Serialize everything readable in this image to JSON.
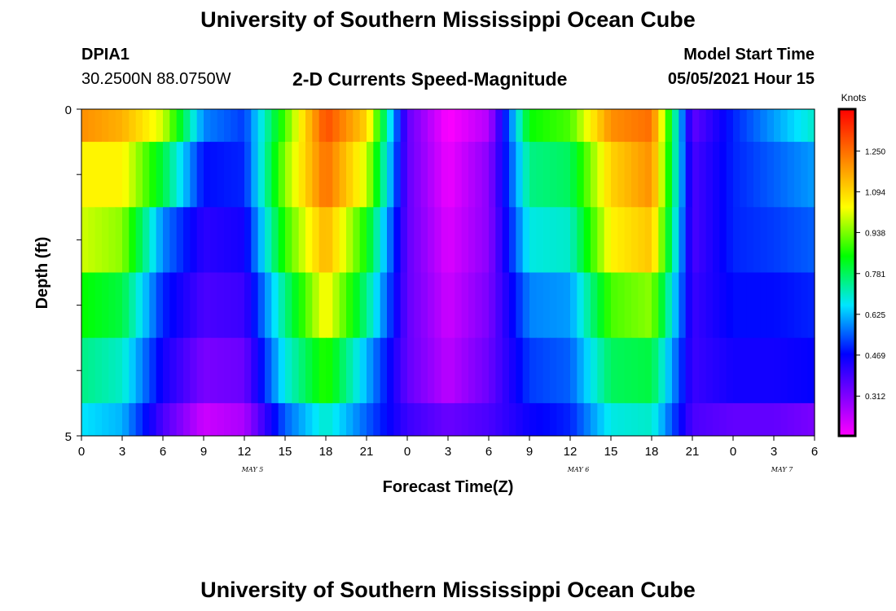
{
  "page": {
    "title_top": "University of Southern Mississippi Ocean Cube",
    "title_bottom": "University of Southern Mississippi Ocean Cube",
    "station_id": "DPIA1",
    "station_coords": "30.2500N  88.0750W",
    "chart_title": "2-D Currents Speed-Magnitude",
    "model_start_label": "Model Start Time",
    "model_start_value": "05/05/2021 Hour 15"
  },
  "chart_data": {
    "type": "heatmap",
    "title": "2-D Currents Speed-Magnitude",
    "xlabel": "Forecast Time(Z)",
    "ylabel": "Depth (ft)",
    "x_tick_labels": [
      "0",
      "3",
      "6",
      "9",
      "12",
      "15",
      "18",
      "21",
      "0",
      "3",
      "6",
      "9",
      "12",
      "15",
      "18",
      "21",
      "0",
      "3",
      "6"
    ],
    "x_range_hours": [
      0,
      54
    ],
    "date_labels": [
      {
        "label": "MAY 5",
        "hour": 12
      },
      {
        "label": "MAY 6",
        "hour": 36
      },
      {
        "label": "MAY 7",
        "hour": 51
      }
    ],
    "y_tick_labels": [
      "0",
      "5"
    ],
    "y_range": [
      0,
      5
    ],
    "colorbar": {
      "unit": "Knots",
      "tick_labels": [
        "1.250",
        "1.094",
        "0.938",
        "0.781",
        "0.625",
        "0.469",
        "0.312"
      ],
      "range": [
        0.16,
        1.41
      ]
    },
    "x_hours": [
      0,
      3,
      6,
      9,
      12,
      15,
      18,
      21,
      24,
      27,
      30,
      33,
      36,
      39,
      42,
      45,
      48,
      51,
      54
    ],
    "depth_rows": [
      {
        "depth_range": [
          0,
          0.5
        ],
        "values": [
          1.2,
          1.15,
          1.0,
          0.58,
          0.52,
          0.9,
          1.3,
          1.1,
          0.35,
          0.16,
          0.25,
          0.85,
          0.9,
          1.2,
          1.25,
          0.35,
          0.5,
          0.6,
          0.7
        ]
      },
      {
        "depth_range": [
          0.5,
          1.5
        ],
        "values": [
          1.05,
          1.05,
          0.8,
          0.48,
          0.5,
          0.95,
          1.25,
          1.0,
          0.35,
          0.18,
          0.3,
          0.75,
          0.78,
          1.1,
          1.2,
          0.38,
          0.5,
          0.55,
          0.6
        ]
      },
      {
        "depth_range": [
          1.5,
          2.5
        ],
        "values": [
          1.0,
          0.95,
          0.58,
          0.42,
          0.45,
          0.88,
          1.15,
          0.85,
          0.35,
          0.2,
          0.3,
          0.68,
          0.7,
          1.05,
          1.12,
          0.38,
          0.5,
          0.52,
          0.55
        ]
      },
      {
        "depth_range": [
          2.5,
          3.5
        ],
        "values": [
          0.85,
          0.8,
          0.5,
          0.38,
          0.4,
          0.75,
          1.05,
          0.75,
          0.35,
          0.22,
          0.32,
          0.58,
          0.6,
          0.9,
          0.95,
          0.4,
          0.48,
          0.48,
          0.5
        ]
      },
      {
        "depth_range": [
          3.5,
          4.5
        ],
        "values": [
          0.75,
          0.7,
          0.45,
          0.32,
          0.34,
          0.68,
          0.88,
          0.62,
          0.35,
          0.24,
          0.34,
          0.52,
          0.55,
          0.78,
          0.8,
          0.4,
          0.45,
          0.45,
          0.47
        ]
      },
      {
        "depth_range": [
          4.5,
          5
        ],
        "values": [
          0.66,
          0.62,
          0.38,
          0.22,
          0.26,
          0.55,
          0.7,
          0.55,
          0.4,
          0.34,
          0.38,
          0.46,
          0.5,
          0.68,
          0.7,
          0.38,
          0.35,
          0.35,
          0.32
        ]
      }
    ],
    "grid": false,
    "legend": "right colorbar"
  }
}
